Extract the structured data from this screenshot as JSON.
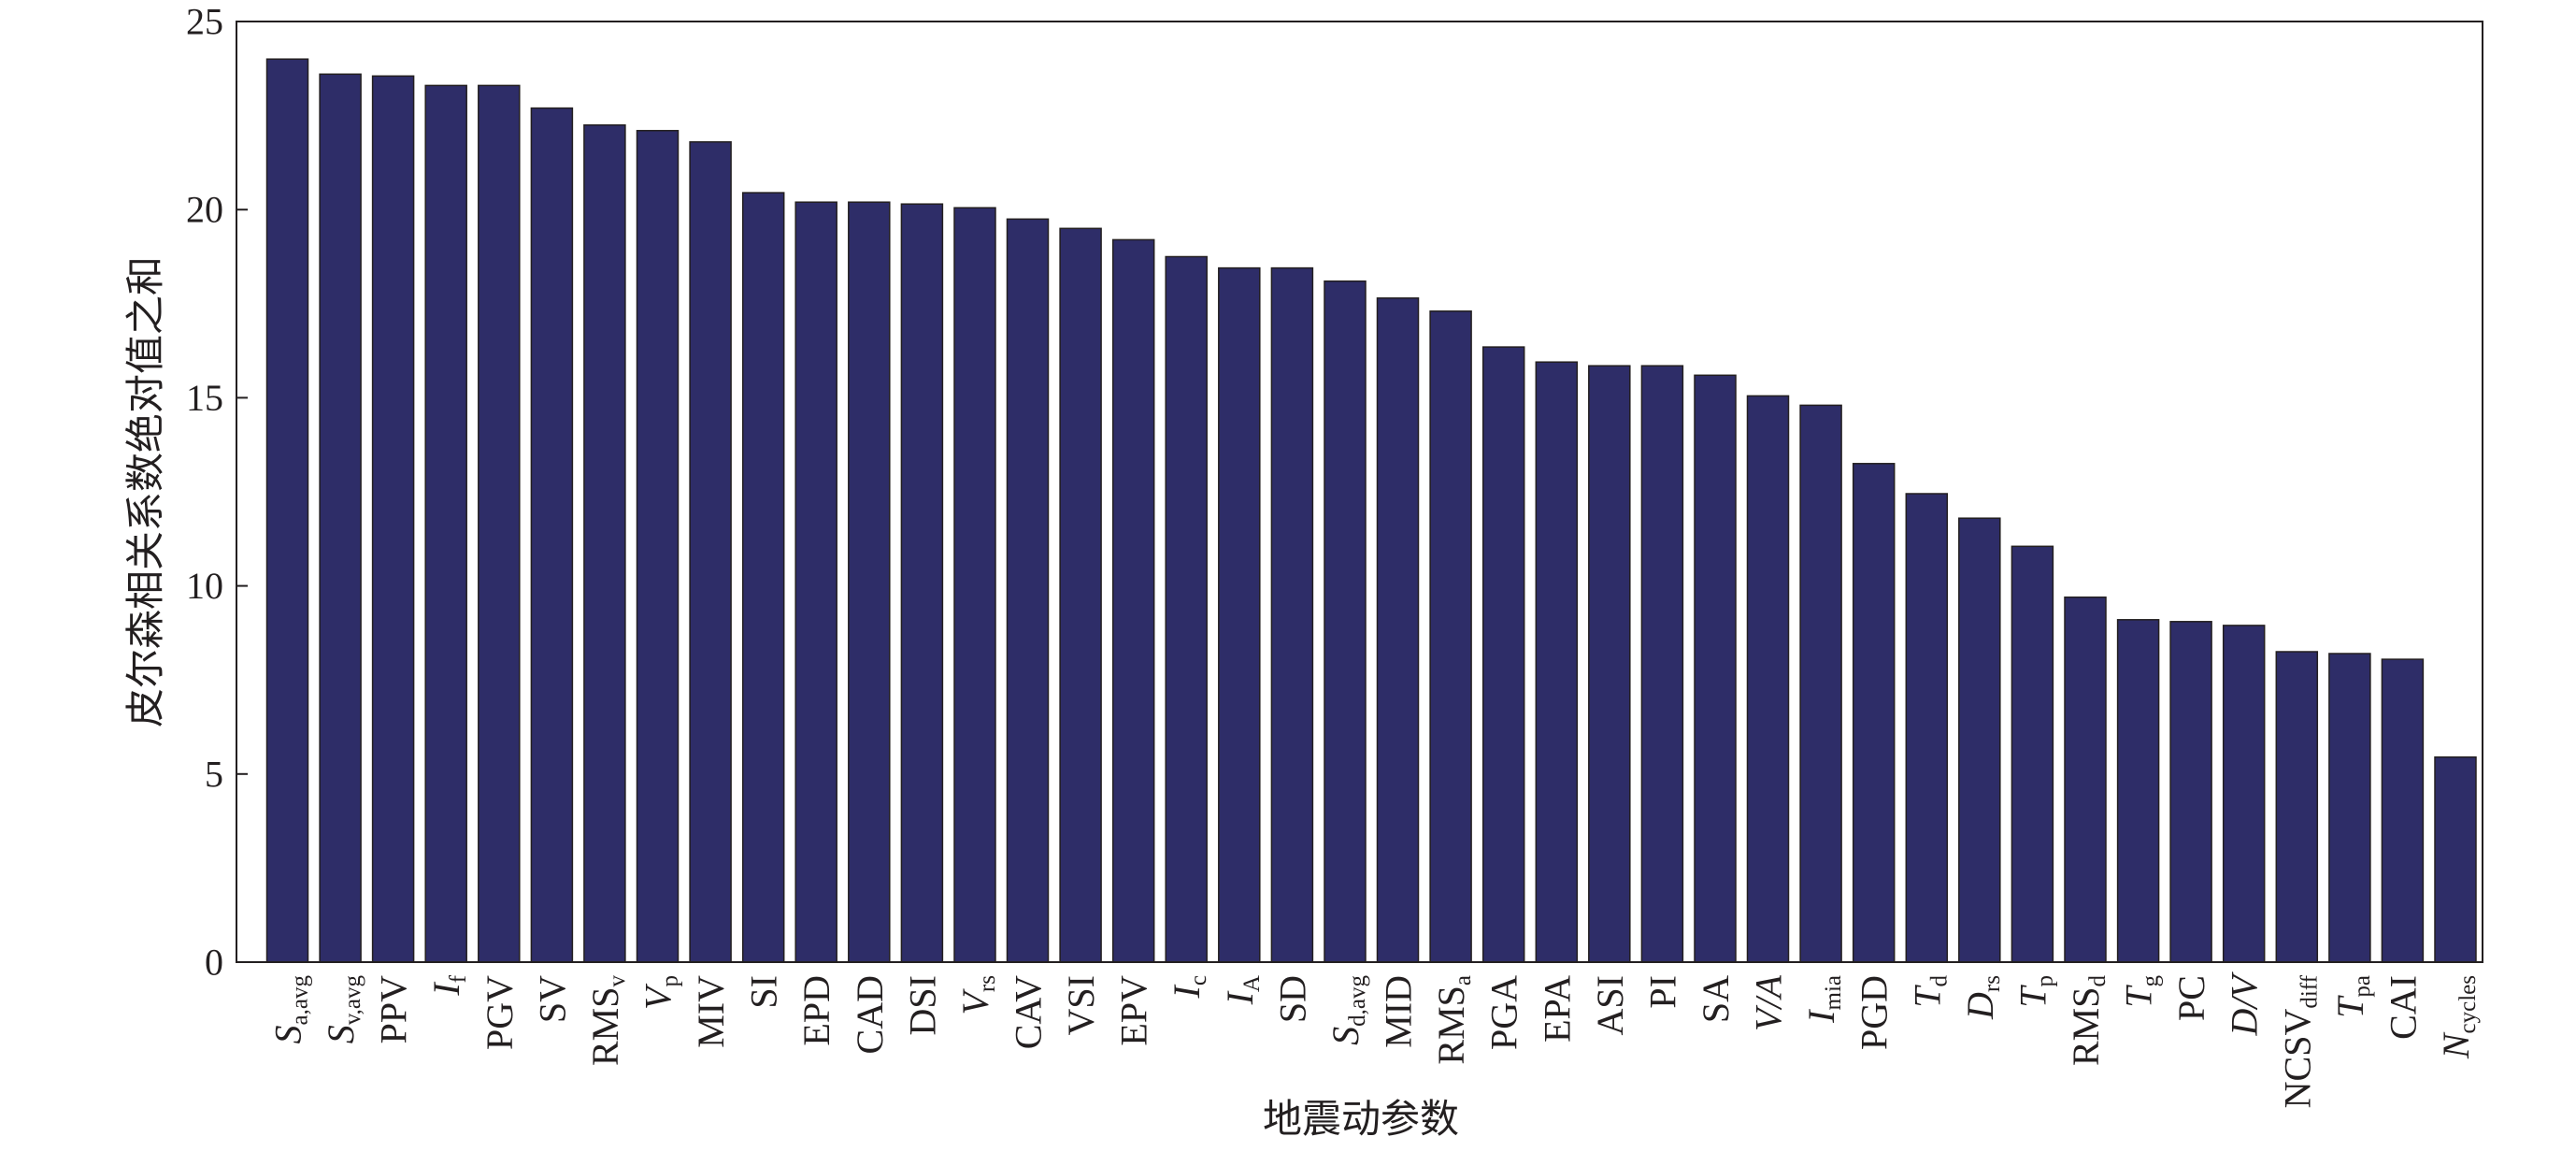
{
  "chart_data": {
    "type": "bar",
    "title": "",
    "xlabel": "地震动参数",
    "ylabel": "皮尔森相关系数绝对值之和",
    "ylim": [
      0,
      25
    ],
    "yticks": [
      0,
      5,
      10,
      15,
      20,
      25
    ],
    "grid": false,
    "bar_color": "#2e2d68",
    "categories": [
      {
        "label": "S",
        "sub": "a,avg",
        "italic": true
      },
      {
        "label": "S",
        "sub": "v,avg",
        "italic": true
      },
      {
        "label": "PPV"
      },
      {
        "label": "I",
        "sub": "f",
        "italic": true
      },
      {
        "label": "PGV"
      },
      {
        "label": "SV"
      },
      {
        "label": "RMS",
        "sub": "v"
      },
      {
        "label": "V",
        "sub": "p",
        "italic": true
      },
      {
        "label": "MIV"
      },
      {
        "label": "SI"
      },
      {
        "label": "EPD"
      },
      {
        "label": "CAD"
      },
      {
        "label": "DSI"
      },
      {
        "label": "V",
        "sub": "rs",
        "italic": true
      },
      {
        "label": "CAV"
      },
      {
        "label": "VSI"
      },
      {
        "label": "EPV"
      },
      {
        "label": "I",
        "sub": "c",
        "italic": true
      },
      {
        "label": "I",
        "sub": "A",
        "italic": true
      },
      {
        "label": "SD"
      },
      {
        "label": "S",
        "sub": "d,avg",
        "italic": true
      },
      {
        "label": "MID"
      },
      {
        "label": "RMS",
        "sub": "a"
      },
      {
        "label": "PGA"
      },
      {
        "label": "EPA"
      },
      {
        "label": "ASI"
      },
      {
        "label": "PI"
      },
      {
        "label": "SA"
      },
      {
        "label": "V/A",
        "italic": true
      },
      {
        "label": "I",
        "sub": "mia",
        "italic": true
      },
      {
        "label": "PGD"
      },
      {
        "label": "T",
        "sub": "d",
        "italic": true
      },
      {
        "label": "D",
        "sub": "rs",
        "italic": true
      },
      {
        "label": "T",
        "sub": "p",
        "italic": true
      },
      {
        "label": "RMS",
        "sub": "d"
      },
      {
        "label": "T",
        "sub": "g",
        "italic": true
      },
      {
        "label": "PC"
      },
      {
        "label": "D/V",
        "italic": true
      },
      {
        "label": "NCSV",
        "sub": "diff"
      },
      {
        "label": "T",
        "sub": "pa",
        "italic": true
      },
      {
        "label": "CAI"
      },
      {
        "label": "N",
        "sub": "cycles",
        "italic": true
      }
    ],
    "values": [
      24.0,
      23.6,
      23.55,
      23.3,
      23.3,
      22.7,
      22.25,
      22.1,
      21.8,
      20.45,
      20.2,
      20.2,
      20.15,
      20.05,
      19.75,
      19.5,
      19.2,
      18.75,
      18.45,
      18.45,
      18.1,
      17.65,
      17.3,
      16.35,
      15.95,
      15.85,
      15.85,
      15.6,
      15.05,
      14.8,
      13.25,
      12.45,
      11.8,
      11.05,
      9.7,
      9.1,
      9.05,
      8.95,
      8.25,
      8.2,
      8.05,
      5.45
    ]
  }
}
